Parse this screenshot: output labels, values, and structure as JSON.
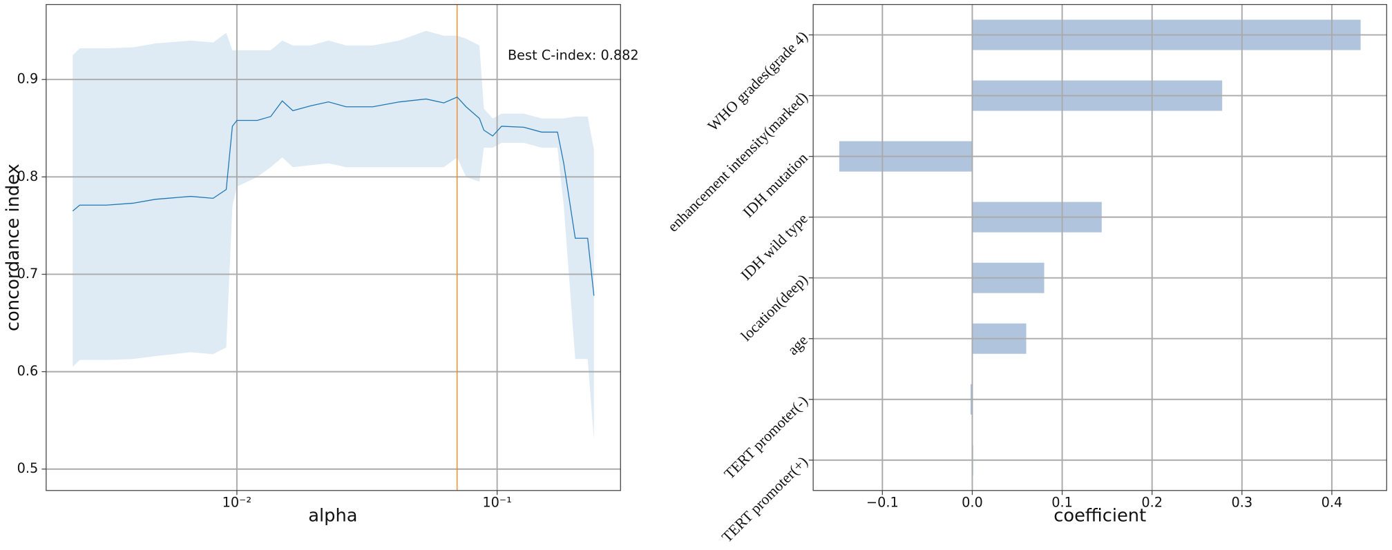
{
  "chart_data": [
    {
      "type": "line",
      "x": [
        0.00234,
        0.00249,
        0.00315,
        0.00399,
        0.00486,
        0.00665,
        0.0081,
        0.0091,
        0.00961,
        0.01,
        0.01198,
        0.01349,
        0.01494,
        0.01641,
        0.0192,
        0.02249,
        0.0263,
        0.03327,
        0.04215,
        0.05333,
        0.0624,
        0.07022,
        0.07598,
        0.08551,
        0.08892,
        0.09616,
        0.104,
        0.1265,
        0.1482,
        0.1706,
        0.1803,
        0.1996,
        0.2228,
        0.2355
      ],
      "values": [
        0.765,
        0.771,
        0.771,
        0.773,
        0.777,
        0.78,
        0.778,
        0.787,
        0.852,
        0.858,
        0.858,
        0.862,
        0.878,
        0.868,
        0.873,
        0.877,
        0.872,
        0.872,
        0.877,
        0.88,
        0.876,
        0.882,
        0.872,
        0.86,
        0.848,
        0.842,
        0.852,
        0.851,
        0.846,
        0.846,
        0.814,
        0.737,
        0.737,
        0.678
      ],
      "lower": [
        0.605,
        0.612,
        0.612,
        0.613,
        0.616,
        0.62,
        0.618,
        0.625,
        0.77,
        0.79,
        0.8,
        0.81,
        0.82,
        0.81,
        0.812,
        0.814,
        0.81,
        0.81,
        0.81,
        0.81,
        0.81,
        0.82,
        0.8,
        0.795,
        0.83,
        0.83,
        0.835,
        0.835,
        0.83,
        0.83,
        0.77,
        0.613,
        0.613,
        0.53
      ],
      "upper": [
        0.925,
        0.932,
        0.932,
        0.933,
        0.937,
        0.94,
        0.938,
        0.948,
        0.93,
        0.93,
        0.93,
        0.93,
        0.94,
        0.935,
        0.935,
        0.94,
        0.935,
        0.935,
        0.94,
        0.95,
        0.945,
        0.945,
        0.942,
        0.935,
        0.87,
        0.86,
        0.865,
        0.865,
        0.86,
        0.86,
        0.86,
        0.862,
        0.862,
        0.828
      ],
      "color": "#1f77b4",
      "band_color": "#1f77b4",
      "band_opacity": 0.15,
      "vline": 0.0702,
      "vline_color": "#ff7f0e",
      "annotation": "Best C-index: 0.882",
      "xlabel": "alpha",
      "ylabel": "concordance index",
      "xscale": "log",
      "xlim": [
        0.00185,
        0.298
      ],
      "ylim": [
        0.478,
        0.977
      ],
      "xticks": [
        {
          "value": 0.01,
          "label": "10⁻²"
        },
        {
          "value": 0.1,
          "label": "10⁻¹"
        }
      ],
      "yticks": [
        0.5,
        0.6,
        0.7,
        0.8,
        0.9
      ],
      "grid": true
    },
    {
      "type": "barh",
      "categories": [
        "WHO grades(grade 4)",
        "enhancement intensity(marked)",
        "IDH mutation",
        "IDH wild type",
        "location(deep)",
        "age",
        "TERT promoter(-)",
        "TERT promoter(+)"
      ],
      "values": [
        0.432,
        0.278,
        -0.148,
        0.144,
        0.08,
        0.06,
        -0.002,
        0.001
      ],
      "color": "#b0c4de",
      "xlabel": "coefficient",
      "xlim": [
        -0.177,
        0.461
      ],
      "xticks": [
        {
          "value": -0.1,
          "label": "−0.1"
        },
        {
          "value": 0,
          "label": "0.0"
        },
        0.1,
        0.2,
        0.3,
        0.4
      ],
      "grid": true
    }
  ]
}
